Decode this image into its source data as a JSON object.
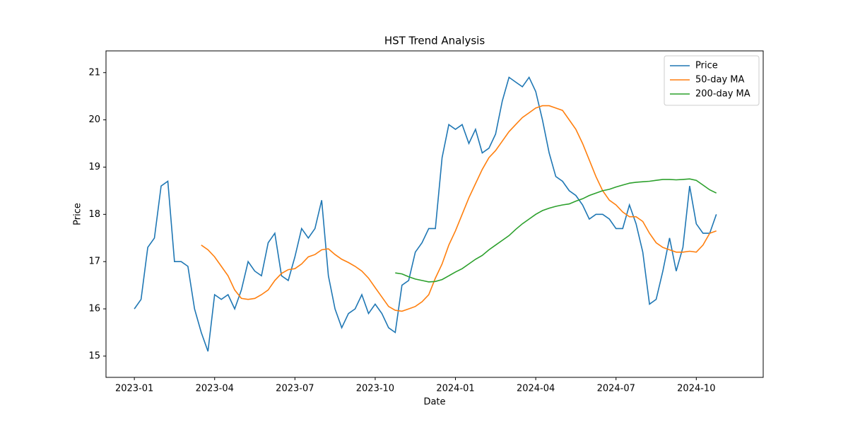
{
  "chart_data": {
    "type": "line",
    "title": "HST Trend Analysis",
    "x_label": "Date",
    "y_label": "Price",
    "x": [
      0,
      0.25,
      0.5,
      0.75,
      1,
      1.25,
      1.5,
      1.75,
      2,
      2.25,
      2.5,
      2.75,
      3,
      3.25,
      3.5,
      3.75,
      4,
      4.25,
      4.5,
      4.75,
      5,
      5.25,
      5.5,
      5.75,
      6,
      6.25,
      6.5,
      6.75,
      7,
      7.25,
      7.5,
      7.75,
      8,
      8.25,
      8.5,
      8.75,
      9,
      9.25,
      9.5,
      9.75,
      10,
      10.25,
      10.5,
      10.75,
      11,
      11.25,
      11.5,
      11.75,
      12,
      12.25,
      12.5,
      12.75,
      13,
      13.25,
      13.5,
      13.75,
      14,
      14.25,
      14.5,
      14.75,
      15,
      15.25,
      15.5,
      15.75,
      16,
      16.25,
      16.5,
      16.75,
      17,
      17.25,
      17.5,
      17.75,
      18,
      18.25,
      18.5,
      18.75,
      19,
      19.25,
      19.5,
      19.75,
      20,
      20.25,
      20.5,
      20.75,
      21,
      21.25,
      21.5,
      21.75
    ],
    "series": [
      {
        "name": "Price",
        "color": "#1f77b4",
        "values": [
          16.0,
          16.2,
          17.3,
          17.5,
          18.6,
          18.7,
          17.0,
          17.0,
          16.9,
          16.0,
          15.5,
          15.1,
          16.3,
          16.2,
          16.3,
          16.0,
          16.4,
          17.0,
          16.8,
          16.7,
          17.4,
          17.6,
          16.7,
          16.6,
          17.1,
          17.7,
          17.5,
          17.7,
          18.3,
          16.7,
          16.0,
          15.6,
          15.9,
          16.0,
          16.3,
          15.9,
          16.1,
          15.9,
          15.6,
          15.5,
          16.5,
          16.6,
          17.2,
          17.4,
          17.7,
          17.7,
          19.2,
          19.9,
          19.8,
          19.9,
          19.5,
          19.8,
          19.3,
          19.4,
          19.7,
          20.4,
          20.9,
          20.8,
          20.7,
          20.9,
          20.6,
          20.0,
          19.3,
          18.8,
          18.7,
          18.5,
          18.4,
          18.2,
          17.9,
          18.0,
          18.0,
          17.9,
          17.7,
          17.7,
          18.2,
          17.8,
          17.2,
          16.1,
          16.2,
          16.8,
          17.5,
          16.8,
          17.3,
          18.6,
          17.8,
          17.6,
          17.6,
          18.0
        ]
      },
      {
        "name": "50-day MA",
        "color": "#ff7f0e",
        "values": [
          null,
          null,
          null,
          null,
          null,
          null,
          null,
          null,
          null,
          null,
          17.35,
          17.25,
          17.1,
          16.9,
          16.7,
          16.4,
          16.22,
          16.2,
          16.22,
          16.3,
          16.4,
          16.6,
          16.75,
          16.83,
          16.85,
          16.95,
          17.1,
          17.15,
          17.25,
          17.27,
          17.15,
          17.05,
          16.98,
          16.9,
          16.8,
          16.65,
          16.45,
          16.25,
          16.05,
          15.97,
          15.95,
          16.0,
          16.05,
          16.15,
          16.3,
          16.65,
          16.95,
          17.35,
          17.65,
          18.0,
          18.35,
          18.65,
          18.95,
          19.2,
          19.35,
          19.55,
          19.75,
          19.9,
          20.05,
          20.15,
          20.25,
          20.3,
          20.3,
          20.25,
          20.2,
          20.0,
          19.8,
          19.5,
          19.15,
          18.8,
          18.5,
          18.3,
          18.2,
          18.05,
          17.95,
          17.95,
          17.85,
          17.6,
          17.4,
          17.3,
          17.25,
          17.2,
          17.2,
          17.22,
          17.2,
          17.35,
          17.6,
          17.65
        ]
      },
      {
        "name": "200-day MA",
        "color": "#2ca02c",
        "values": [
          null,
          null,
          null,
          null,
          null,
          null,
          null,
          null,
          null,
          null,
          null,
          null,
          null,
          null,
          null,
          null,
          null,
          null,
          null,
          null,
          null,
          null,
          null,
          null,
          null,
          null,
          null,
          null,
          null,
          null,
          null,
          null,
          null,
          null,
          null,
          null,
          null,
          null,
          null,
          16.76,
          16.74,
          16.68,
          16.63,
          16.6,
          16.57,
          16.58,
          16.62,
          16.7,
          16.78,
          16.85,
          16.95,
          17.05,
          17.13,
          17.25,
          17.35,
          17.45,
          17.55,
          17.68,
          17.8,
          17.9,
          18.0,
          18.08,
          18.13,
          18.17,
          18.2,
          18.22,
          18.28,
          18.33,
          18.4,
          18.45,
          18.5,
          18.53,
          18.58,
          18.62,
          18.66,
          18.68,
          18.69,
          18.7,
          18.72,
          18.74,
          18.74,
          18.73,
          18.74,
          18.75,
          18.72,
          18.62,
          18.52,
          18.45
        ]
      }
    ],
    "xlim": [
      -1.06,
      23.5
    ],
    "xticks": [
      {
        "value": 0,
        "label": "2023-01"
      },
      {
        "value": 3,
        "label": "2023-04"
      },
      {
        "value": 6,
        "label": "2023-07"
      },
      {
        "value": 9,
        "label": "2023-10"
      },
      {
        "value": 12,
        "label": "2024-01"
      },
      {
        "value": 15,
        "label": "2024-04"
      },
      {
        "value": 18,
        "label": "2024-07"
      },
      {
        "value": 21,
        "label": "2024-10"
      }
    ],
    "ylim": [
      14.55,
      21.46
    ],
    "yticks": [
      15,
      16,
      17,
      18,
      19,
      20,
      21
    ],
    "legend": "upper right"
  }
}
